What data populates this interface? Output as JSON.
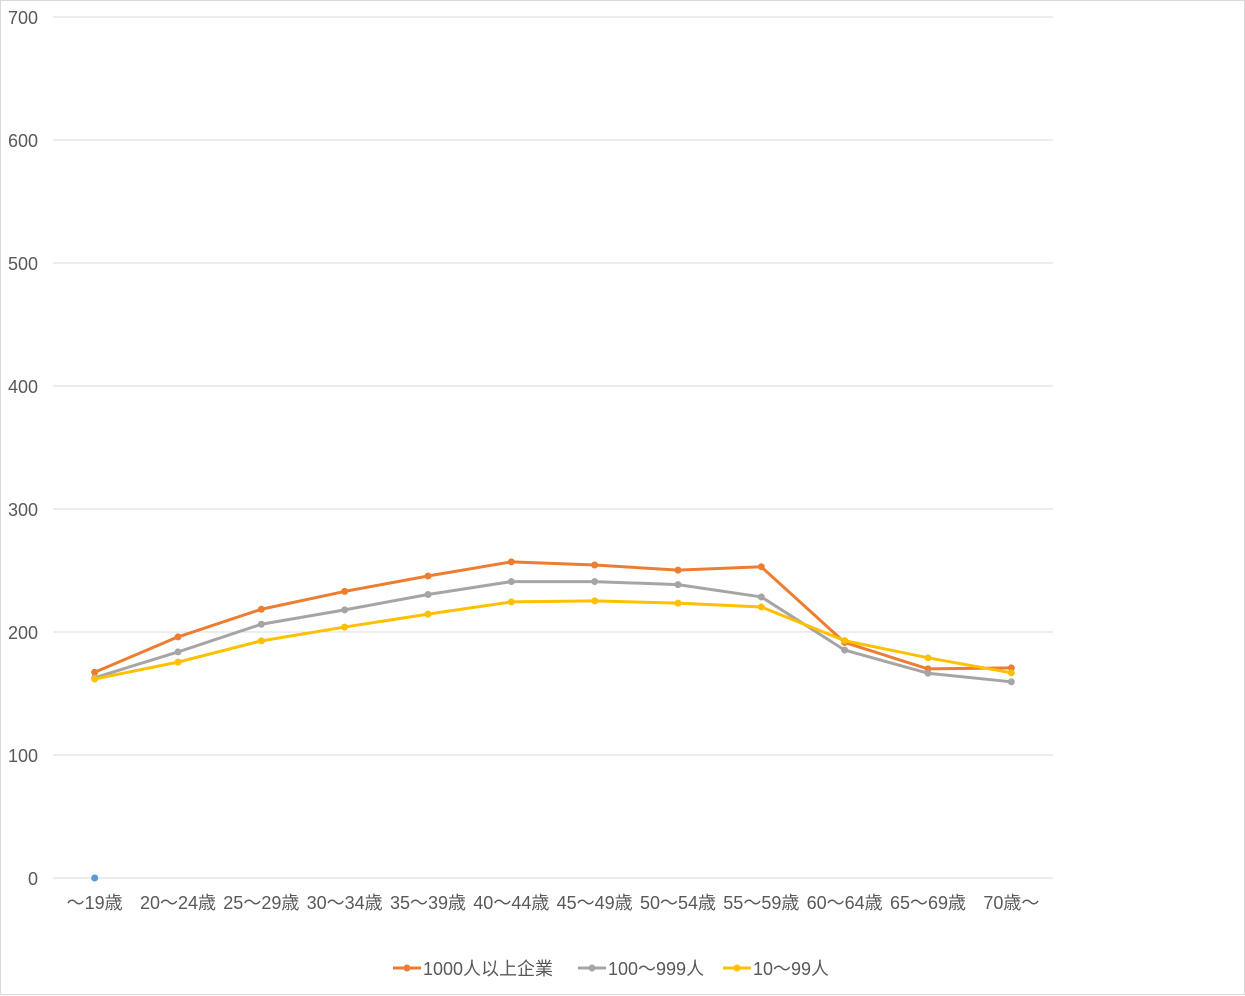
{
  "chart_data": {
    "type": "line",
    "title": "",
    "xlabel": "",
    "ylabel": "",
    "ylim": [
      0,
      700
    ],
    "yticks": [
      0,
      100,
      200,
      300,
      400,
      500,
      600,
      700
    ],
    "grid": true,
    "legend_position": "bottom",
    "categories": [
      "～19歳",
      "20～24歳",
      "25～29歳",
      "30～34歳",
      "35～39歳",
      "40～44歳",
      "45～49歳",
      "50～54歳",
      "55～59歳",
      "60～64歳",
      "65～69歳",
      "70歳～"
    ],
    "series": [
      {
        "name": "1000人以上企業",
        "color": "#ED7D31",
        "values": [
          167.3,
          196.0,
          218.5,
          233.0,
          245.5,
          257.0,
          254.5,
          250.3,
          253.0,
          191.5,
          170.0,
          170.8
        ]
      },
      {
        "name": "100～999人",
        "color": "#A5A5A5",
        "values": [
          162.8,
          183.8,
          206.3,
          218.0,
          230.5,
          241.0,
          241.0,
          238.5,
          228.5,
          185.3,
          166.5,
          159.5
        ]
      },
      {
        "name": "10～99人",
        "color": "#FFC000",
        "values": [
          161.8,
          175.5,
          192.8,
          204.0,
          214.5,
          224.5,
          225.3,
          223.5,
          220.3,
          193.0,
          179.0,
          166.8
        ]
      }
    ],
    "extra_points": [
      {
        "category": "～19歳",
        "value": 0,
        "color": "#5B9BD5"
      }
    ]
  }
}
